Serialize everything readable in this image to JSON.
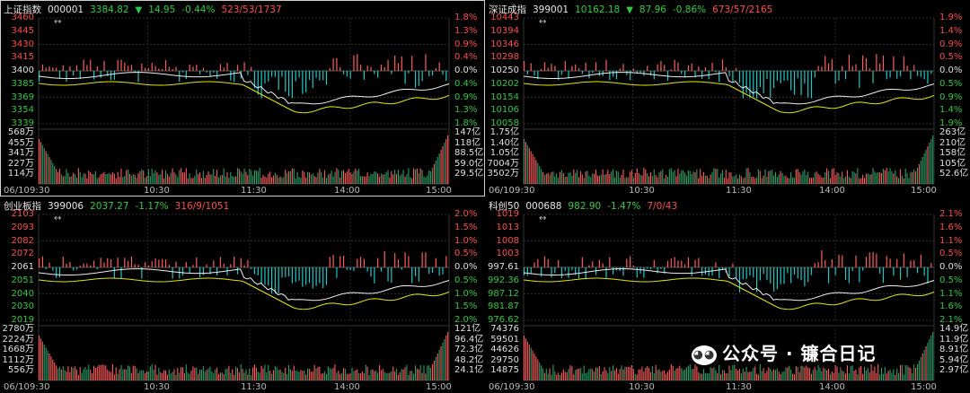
{
  "panels": [
    {
      "name": "上证指数",
      "code": "000001",
      "price": "3384.82",
      "arrow": "▼",
      "change": "14.95",
      "pct": "-0.44%",
      "breadth": "523/53/1737",
      "y_left": [
        "3460",
        "3445",
        "3430",
        "3415",
        "3400",
        "3385",
        "3369",
        "3354",
        "3339"
      ],
      "y_right": [
        "1.8%",
        "1.3%",
        "0.9%",
        "0.4%",
        "0.0%",
        "0.4%",
        "0.9%",
        "1.3%",
        "1.8%"
      ],
      "vol_left": [
        "568万",
        "455万",
        "341万",
        "227万",
        "114万"
      ],
      "vol_right": [
        "147亿",
        "118亿",
        "88.5亿",
        "59.0亿",
        "29.5亿"
      ],
      "x_ticks": [
        "06/10",
        "9:30",
        "10:30",
        "11:30",
        "14:00",
        "15:00"
      ]
    },
    {
      "name": "深证成指",
      "code": "399001",
      "price": "10162.18",
      "arrow": "▼",
      "change": "87.96",
      "pct": "-0.86%",
      "breadth": "673/57/2165",
      "y_left": [
        "10443",
        "10394",
        "10346",
        "10298",
        "10250",
        "10202",
        "10154",
        "10106",
        "10058"
      ],
      "y_right": [
        "1.9%",
        "1.4%",
        "0.9%",
        "0.5%",
        "0.0%",
        "0.5%",
        "0.9%",
        "1.4%",
        "1.9%"
      ],
      "vol_left": [
        "1.75亿",
        "1.40亿",
        "1.05亿",
        "7004万",
        "3502万"
      ],
      "vol_right": [
        "263亿",
        "210亿",
        "158亿",
        "105亿",
        "52.6亿"
      ],
      "x_ticks": [
        "06/10",
        "9:30",
        "10:30",
        "11:30",
        "14:00",
        "15:00"
      ]
    },
    {
      "name": "创业板指",
      "code": "399006",
      "price": "2037.27",
      "arrow": "",
      "change": "",
      "pct": "-1.17%",
      "breadth": "316/9/1051",
      "y_left": [
        "2103",
        "2093",
        "2082",
        "2072",
        "2061",
        "2051",
        "2040",
        "2030",
        "2019"
      ],
      "y_right": [
        "2.0%",
        "1.5%",
        "1.0%",
        "0.5%",
        "0.0%",
        "0.5%",
        "1.0%",
        "1.5%",
        "2.0%"
      ],
      "vol_left": [
        "2780万",
        "2224万",
        "1668万",
        "1112万",
        "556万"
      ],
      "vol_right": [
        "121亿",
        "96.4亿",
        "72.3亿",
        "48.2亿",
        "24.1亿"
      ],
      "x_ticks": [
        "06/10",
        "9:30",
        "10:30",
        "11:30",
        "14:00",
        "15:00"
      ]
    },
    {
      "name": "科创50",
      "code": "000688",
      "price": "982.90",
      "arrow": "",
      "change": "",
      "pct": "-1.47%",
      "breadth": "7/0/43",
      "y_left": [
        "1019",
        "1013",
        "1008",
        "1003",
        "997.61",
        "992.36",
        "987.12",
        "981.87",
        "976.62"
      ],
      "y_right": [
        "2.1%",
        "1.6%",
        "1.1%",
        "0.5%",
        "0.0%",
        "0.5%",
        "1.1%",
        "1.6%",
        "2.1%"
      ],
      "vol_left": [
        "74376",
        "59501",
        "44626",
        "29750",
        "14875"
      ],
      "vol_right": [
        "14.9亿",
        "11.9亿",
        "8.91亿",
        "5.94亿",
        "2.97亿"
      ],
      "x_ticks": [
        "06/10",
        "9:30",
        "10:30",
        "11:30",
        "14:00",
        "15:00"
      ]
    }
  ],
  "link_icon": "↔",
  "watermark": "公众号 · 镰合日记",
  "watermark_icon": "wechat-icon",
  "colors": {
    "up": "#ff4d4d",
    "down": "#2ecc40",
    "bar_up": "#ff5c5c",
    "bar_down": "#1fc7c7",
    "line_white": "#f0f0f0",
    "line_yellow": "#e6e600",
    "grid": "#2a2a2a"
  }
}
